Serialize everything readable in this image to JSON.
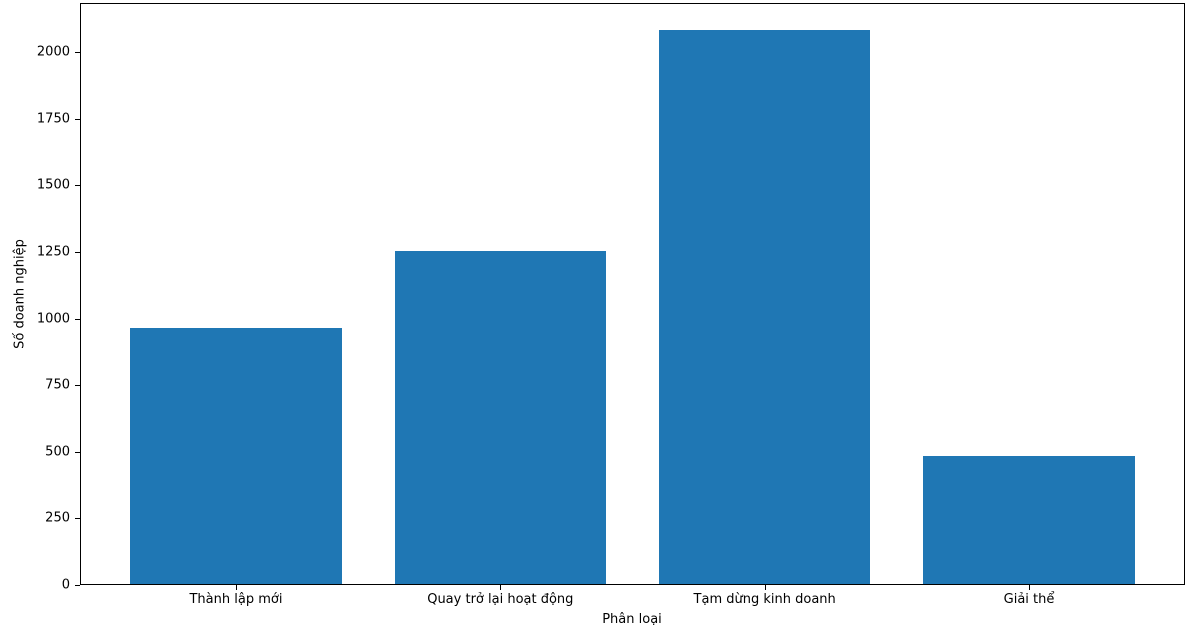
{
  "chart_data": {
    "type": "bar",
    "title": "",
    "xlabel": "Phân loại",
    "ylabel": "Số doanh nghiệp",
    "categories": [
      "Thành lập mới",
      "Quay trở lại hoạt động",
      "Tạm dừng kinh doanh",
      "Giải thể"
    ],
    "values": [
      960,
      1250,
      2080,
      480
    ],
    "ylim": [
      0,
      2184
    ],
    "yticks": [
      0,
      250,
      500,
      750,
      1000,
      1250,
      1500,
      1750,
      2000
    ],
    "bar_width_fraction": 0.8,
    "grid": false,
    "legend": null,
    "bar_color": "#1f77b4"
  },
  "colors": {
    "bar": "#1f77b4",
    "axis": "#000000",
    "background": "#ffffff",
    "text": "#000000"
  }
}
